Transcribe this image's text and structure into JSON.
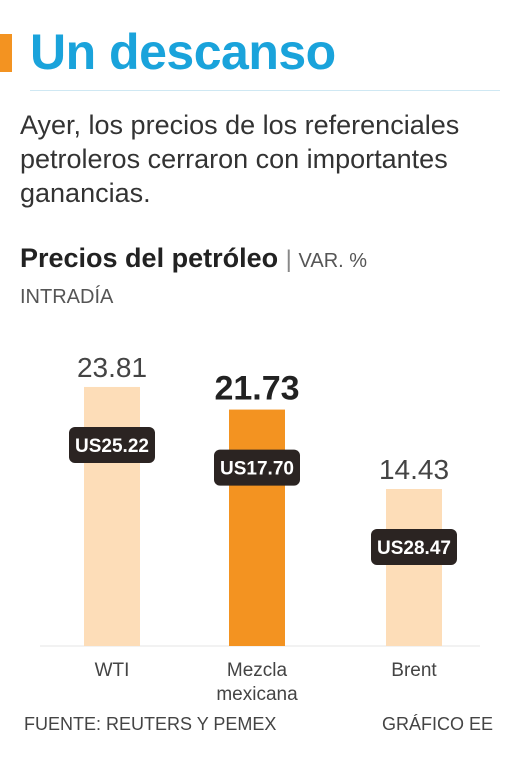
{
  "header": {
    "title": "Un descanso",
    "deck": "Ayer, los precios de los referenciales petroleros cerraron con importantes ganancias."
  },
  "colors": {
    "accent": "#F39321",
    "title_blue": "#1AA3DB",
    "bar_light": "#FDDDB8",
    "bar_highlight": "#F39321",
    "price_tag": "#2B2422"
  },
  "chart_data": {
    "type": "bar",
    "title": "Precios del petróleo",
    "unit_label": "VAR. %",
    "subtitle": "INTRADÍA",
    "categories": [
      "WTI",
      "Mezcla mexicana",
      "Brent"
    ],
    "values": [
      23.81,
      21.73,
      14.43
    ],
    "value_labels": [
      "23.81",
      "21.73",
      "14.43"
    ],
    "price_labels": [
      "US25.22",
      "US17.70",
      "US28.47"
    ],
    "highlight_index": 1,
    "ylim": [
      0,
      25
    ],
    "grid": false,
    "legend": "none"
  },
  "footer": {
    "source": "FUENTE: REUTERS Y PEMEX",
    "credit": "GRÁFICO EE"
  }
}
